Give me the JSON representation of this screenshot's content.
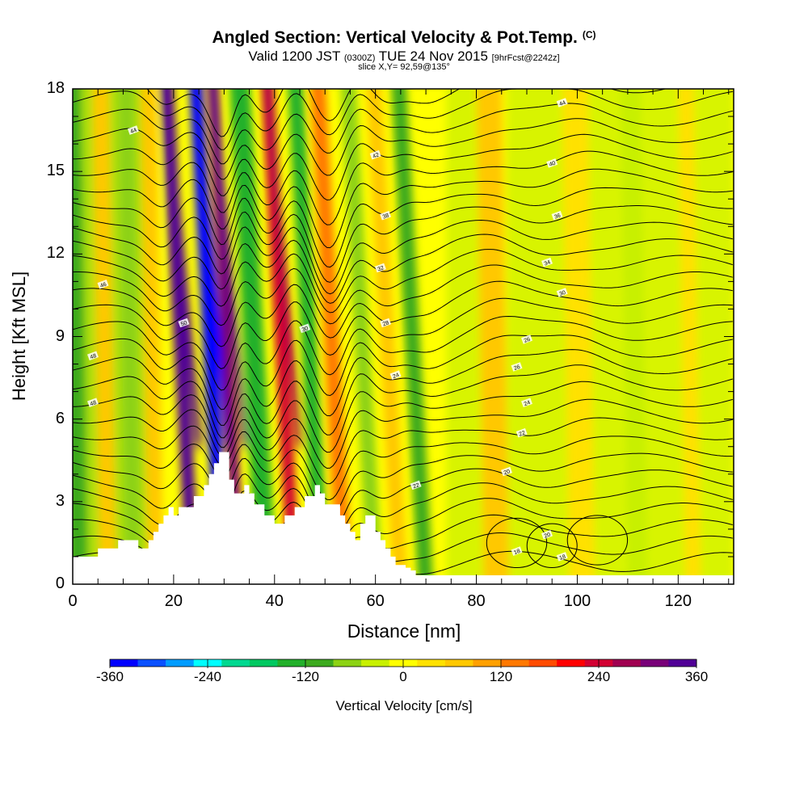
{
  "titles": {
    "main": "Angled Section: Vertical Velocity & Pot.Temp.",
    "main_suffix": "(C)",
    "valid_prefix": "Valid 1200 JST",
    "valid_small": "(0300Z)",
    "valid_date": "TUE 24 Nov 2015",
    "forecast": "[9hrFcst@2242z]",
    "slice": "slice X,Y= 92,59@135°"
  },
  "chart_data": {
    "type": "heatmap",
    "title": "Angled Section: Vertical Velocity & Pot.Temp.",
    "xlabel": "Distance [nm]",
    "ylabel": "Height [Kft MSL]",
    "xlim": [
      0,
      131
    ],
    "ylim": [
      0,
      18
    ],
    "x_ticks": [
      "0",
      "20",
      "40",
      "60",
      "80",
      "100",
      "120"
    ],
    "y_ticks": [
      "0",
      "3",
      "6",
      "9",
      "12",
      "15",
      "18"
    ],
    "colorbar": {
      "label": "Vertical Velocity [cm/s]",
      "tick_labels": [
        "-360",
        "-240",
        "-120",
        "0",
        "120",
        "240",
        "360"
      ],
      "range": [
        -360,
        360
      ],
      "colors": [
        "#0000ff",
        "#0a50ff",
        "#009cff",
        "#00ffff",
        "#00d890",
        "#00c860",
        "#22b02a",
        "#3caa1e",
        "#8cd214",
        "#c8f000",
        "#ffff00",
        "#ffe100",
        "#ffc800",
        "#ffa000",
        "#ff7800",
        "#ff4b00",
        "#ff0000",
        "#d20032",
        "#a00050",
        "#780078",
        "#500096"
      ]
    },
    "vertical_velocity_bands": [
      {
        "x": 1,
        "w": 4,
        "value": -100
      },
      {
        "x": 7,
        "w": 3,
        "value": 80
      },
      {
        "x": 12,
        "w": 3,
        "value": -60
      },
      {
        "x": 16.5,
        "w": 3,
        "value": 60
      },
      {
        "x": 24,
        "w": 2.6,
        "value": 330
      },
      {
        "x": 29.8,
        "w": 2.6,
        "value": -340
      },
      {
        "x": 33.2,
        "w": 2.2,
        "value": 320
      },
      {
        "x": 38.5,
        "w": 4,
        "value": -140
      },
      {
        "x": 44,
        "w": 2.5,
        "value": 230
      },
      {
        "x": 49.5,
        "w": 3,
        "value": -150
      },
      {
        "x": 54,
        "w": 3,
        "value": 120
      },
      {
        "x": 60,
        "w": 3,
        "value": -80
      },
      {
        "x": 65,
        "w": 3,
        "value": 80
      },
      {
        "x": 70,
        "w": 3,
        "value": -100
      },
      {
        "x": 84,
        "w": 5,
        "value": 70
      },
      {
        "x": 101,
        "w": 5,
        "value": 50
      },
      {
        "x": 112,
        "w": 4,
        "value": -50
      },
      {
        "x": 123,
        "w": 3,
        "value": 40
      }
    ],
    "terrain": {
      "x": [
        0,
        5,
        5,
        9,
        9,
        13,
        13,
        15,
        15,
        16,
        16,
        17,
        17,
        18,
        18,
        19,
        19,
        20,
        20,
        21,
        21,
        24,
        24,
        26,
        26,
        27,
        27,
        28,
        28,
        29,
        29,
        31,
        31,
        32,
        32,
        34,
        34,
        35,
        35,
        36,
        36,
        38,
        38,
        40,
        40,
        42,
        42,
        44,
        44,
        46,
        46,
        48,
        48,
        49,
        49,
        50,
        50,
        53,
        53,
        54,
        54,
        55,
        55,
        56,
        56,
        57,
        57,
        58,
        58,
        60,
        60,
        61,
        61,
        62,
        62,
        63,
        63,
        64,
        64,
        66,
        66,
        67,
        67,
        68,
        68,
        72,
        72,
        73
      ],
      "y": [
        1.0,
        1.0,
        1.3,
        1.3,
        1.6,
        1.6,
        1.3,
        1.3,
        1.6,
        1.6,
        1.9,
        1.9,
        2.2,
        2.2,
        2.5,
        2.5,
        2.8,
        2.8,
        2.5,
        2.5,
        2.8,
        2.8,
        3.2,
        3.2,
        3.6,
        3.6,
        4.0,
        4.0,
        4.4,
        4.4,
        4.8,
        4.8,
        3.8,
        3.8,
        3.3,
        3.3,
        3.6,
        3.6,
        3.3,
        3.3,
        2.9,
        2.9,
        2.5,
        2.5,
        2.2,
        2.2,
        2.5,
        2.5,
        2.8,
        2.8,
        3.2,
        3.2,
        3.6,
        3.6,
        3.3,
        3.3,
        2.9,
        2.9,
        2.5,
        2.5,
        2.2,
        2.2,
        1.9,
        1.9,
        1.6,
        1.6,
        2.2,
        2.2,
        2.5,
        2.5,
        1.9,
        1.9,
        1.6,
        1.6,
        1.3,
        1.3,
        1.0,
        1.0,
        0.7,
        0.7,
        0.6,
        0.6,
        0.5,
        0.5,
        0.3,
        0.3,
        0.0,
        0.0
      ]
    },
    "isentrope_labels": [
      "18",
      "18",
      "20",
      "20",
      "22",
      "22",
      "24",
      "24",
      "26",
      "26",
      "28",
      "30",
      "30",
      "32",
      "34",
      "36",
      "38",
      "40",
      "42",
      "44",
      "44",
      "46",
      "48",
      "48",
      "50"
    ]
  }
}
